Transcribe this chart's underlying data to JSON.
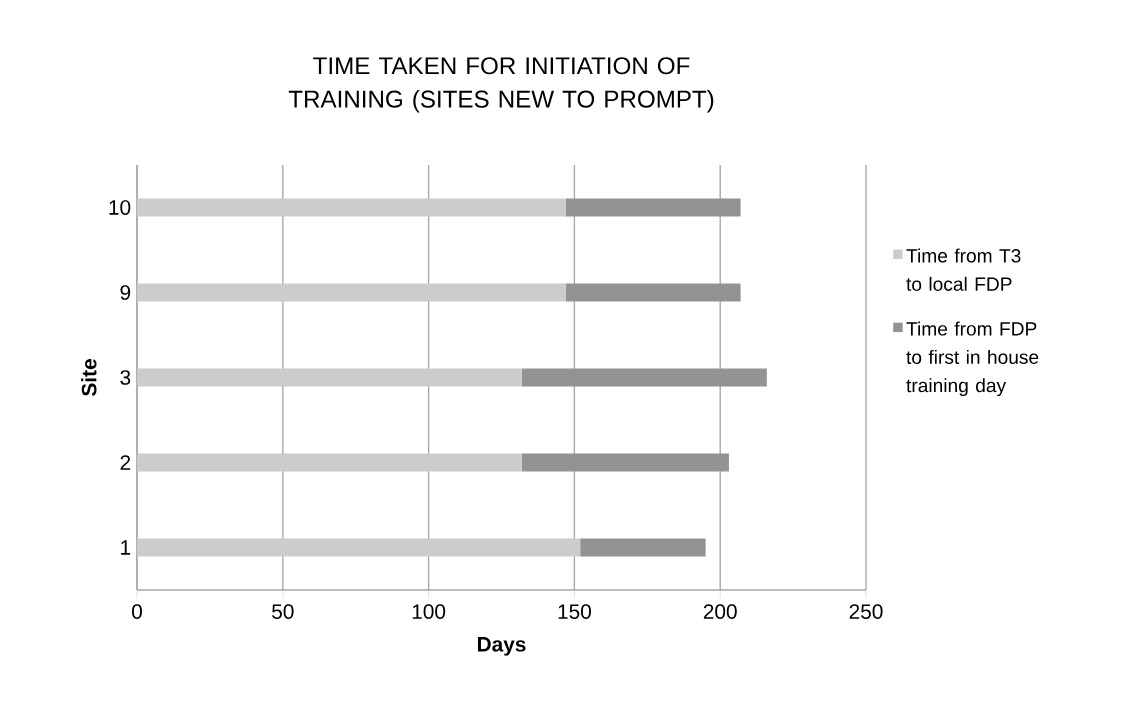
{
  "chart_data": {
    "type": "bar",
    "orientation": "horizontal",
    "stacked": true,
    "title": "TIME TAKEN FOR INITIATION OF TRAINING (SITES NEW TO PROMPT)",
    "xlabel": "Days",
    "ylabel": "Site",
    "categories": [
      "10",
      "9",
      "3",
      "2",
      "1"
    ],
    "series": [
      {
        "name": "Time from T3 to local FDP",
        "color": "#cccccc",
        "values": [
          147,
          147,
          132,
          132,
          152
        ]
      },
      {
        "name": "Time from FDP to first in house training day",
        "color": "#939393",
        "values": [
          60,
          60,
          84,
          71,
          43
        ]
      }
    ],
    "xlim": [
      0,
      250
    ],
    "xticks": [
      0,
      50,
      100,
      150,
      200,
      250
    ],
    "grid": "x",
    "legend": "right"
  }
}
